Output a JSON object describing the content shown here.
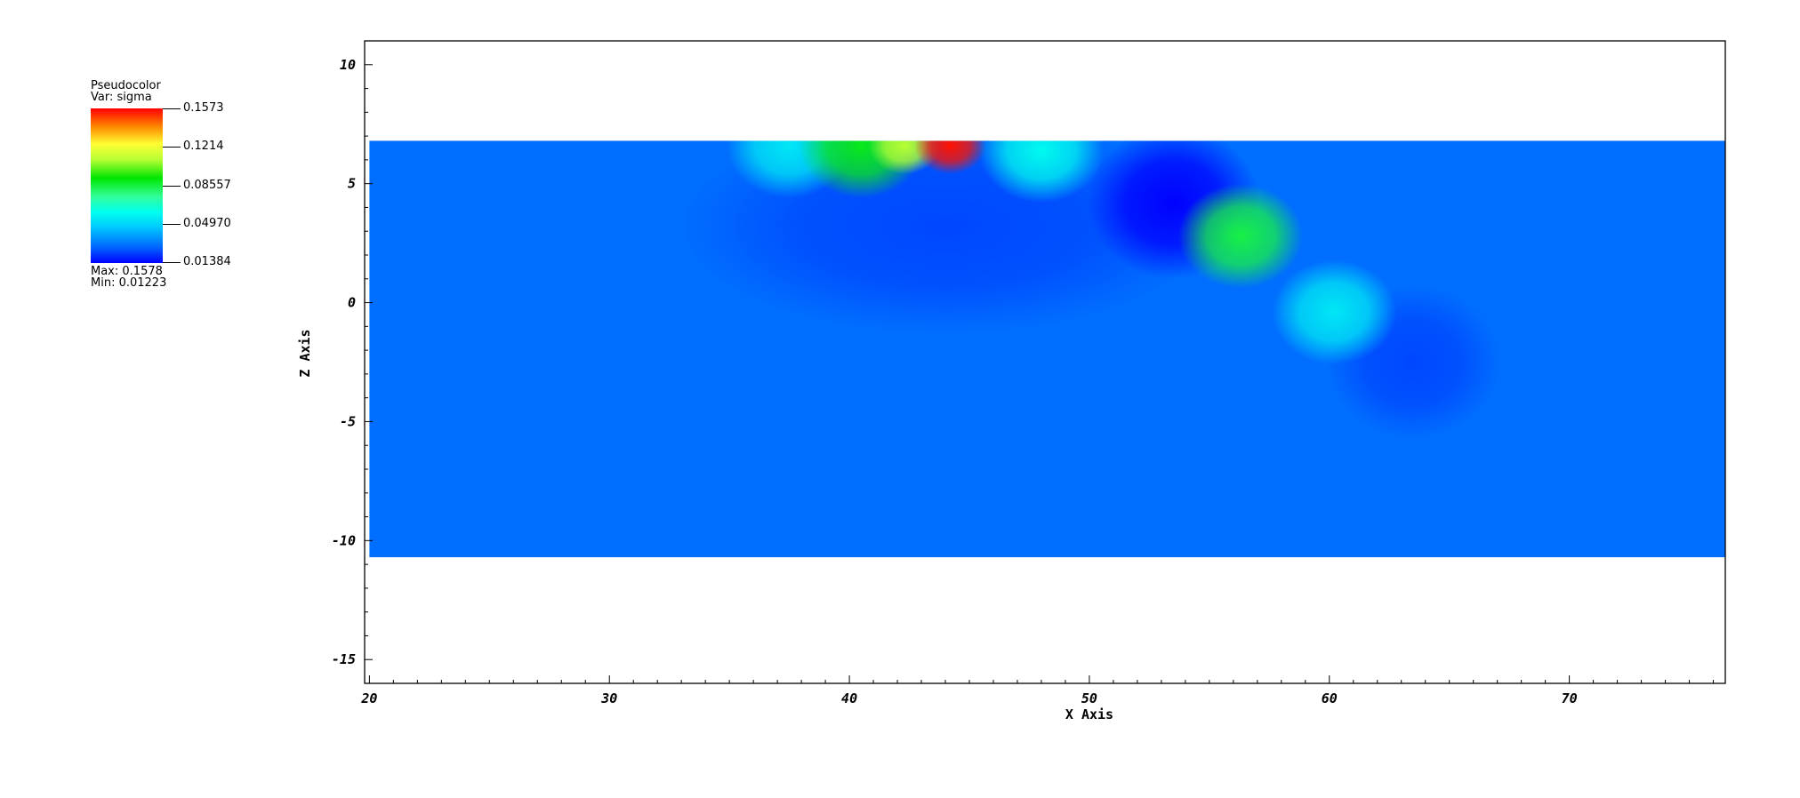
{
  "legend": {
    "title": "Pseudocolor",
    "variable": "Var: sigma",
    "ticks": [
      "0.1573",
      "0.1214",
      "0.08557",
      "0.04970",
      "0.01384"
    ],
    "max_label": "Max:  0.1578",
    "min_label": "Min:  0.01223"
  },
  "chart_data": {
    "type": "heatmap",
    "title": "",
    "xlabel": "X Axis",
    "ylabel": "Z Axis",
    "xlim": [
      19.8,
      76.5
    ],
    "ylim": [
      -16.0,
      11.0
    ],
    "data_extent": {
      "x": [
        20.0,
        76.5
      ],
      "z": [
        -10.7,
        6.8
      ]
    },
    "x_ticks": [
      20,
      30,
      40,
      50,
      60,
      70
    ],
    "x_tick_labels": [
      "20",
      "30",
      "40",
      "50",
      "60",
      "70"
    ],
    "y_ticks": [
      10,
      5,
      0,
      -5,
      -10,
      -15
    ],
    "y_tick_labels": [
      "10",
      "5",
      "0",
      "-5",
      "-10",
      "-15"
    ],
    "colorbar": {
      "min": 0.01384,
      "max": 0.1573,
      "ticks": [
        0.1573,
        0.1214,
        0.08557,
        0.0497,
        0.01384
      ]
    },
    "value_range": {
      "min": 0.01223,
      "max": 0.1578
    },
    "background_value": 0.03,
    "features": [
      {
        "kind": "low",
        "x": 44.0,
        "z": 3.2,
        "value": 0.024
      },
      {
        "kind": "low",
        "x": 53.5,
        "z": 4.2,
        "value": 0.014
      },
      {
        "kind": "low",
        "x": 63.5,
        "z": -2.5,
        "value": 0.024
      },
      {
        "kind": "high",
        "x": 37.5,
        "z": 6.6,
        "value": 0.055
      },
      {
        "kind": "high",
        "x": 40.5,
        "z": 6.6,
        "value": 0.09
      },
      {
        "kind": "high",
        "x": 42.3,
        "z": 6.6,
        "value": 0.11
      },
      {
        "kind": "high",
        "x": 44.2,
        "z": 6.6,
        "value": 0.155
      },
      {
        "kind": "high",
        "x": 48.0,
        "z": 6.4,
        "value": 0.06
      },
      {
        "kind": "high",
        "x": 56.3,
        "z": 2.8,
        "value": 0.085
      },
      {
        "kind": "high",
        "x": 60.2,
        "z": -0.4,
        "value": 0.055
      }
    ]
  }
}
